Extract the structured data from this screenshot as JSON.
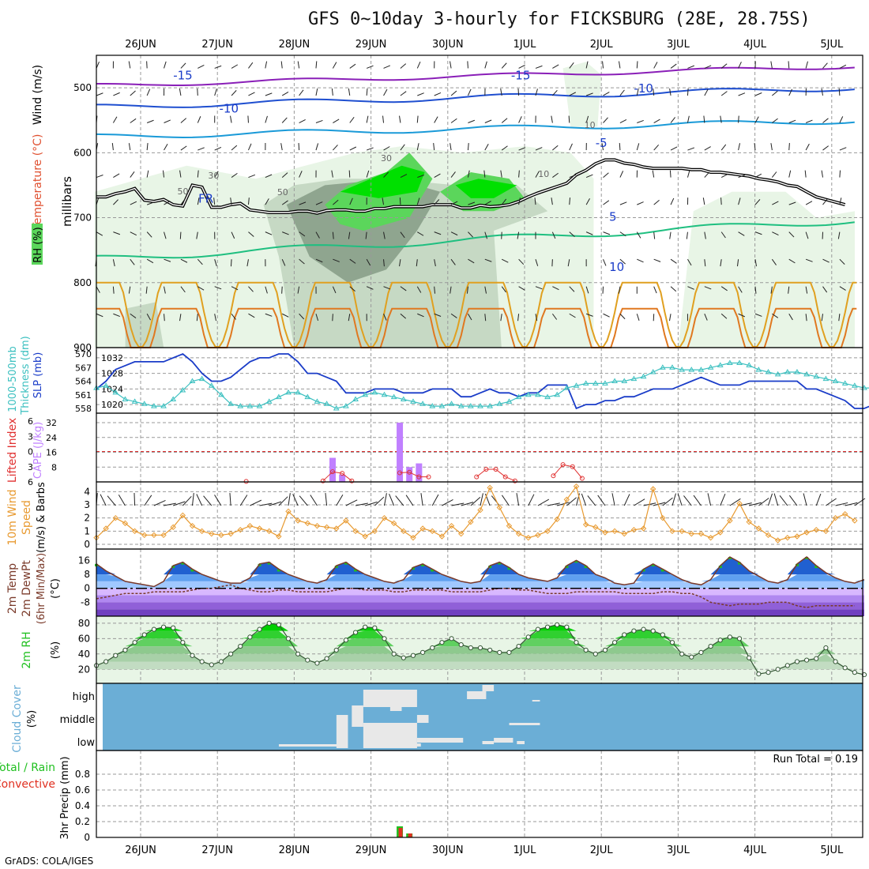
{
  "title": "GFS 0~10day 3-hourly for FICKSBURG (28E, 28.75S)",
  "credit": "GrADS: COLA/IGES",
  "colors": {
    "grid": "#999999",
    "rh_light": "#e8f5e6",
    "rh_mid": "#c6d9c4",
    "rh_dark": "#8fa58f",
    "rh_green": "#5bd65b",
    "rh_bright": "#00e000",
    "temp_purple": "#8a1fb8",
    "temp_blue": "#1f4fd0",
    "temp_cyan": "#1a9ad8",
    "temp_teal": "#1fbf80",
    "temp_orange": "#e0a020",
    "temp_darkorange": "#e07820",
    "temp_magenta": "#d00080",
    "slp": "#1a3cc8",
    "thickness": "#3cc0c0",
    "cape": "#c080ff",
    "li": "#e03030",
    "wind": "#e89a30",
    "cloud_bg": "#6baed6",
    "cloud_fill": "#e8e8e8",
    "precip_total": "#20c020",
    "precip_conv": "#e03020"
  },
  "chart_data": [
    {
      "type": "contour-timeheight",
      "panel": "upper-air",
      "title": "Temperature (°C) / Wind (m/s) / RH (%)",
      "ylabel": "millibars",
      "ylabel_parts": [
        "RH (%)",
        "Temperature (°C)",
        "Wind (m/s)"
      ],
      "yticks": [
        500,
        600,
        700,
        800,
        900
      ],
      "ylim": [
        900,
        450
      ],
      "temperature_labels": [
        {
          "text": "-15",
          "day": 0.55,
          "p": 487
        },
        {
          "text": "-15",
          "day": 4.95,
          "p": 487
        },
        {
          "text": "-10",
          "day": 1.15,
          "p": 538
        },
        {
          "text": "-10",
          "day": 6.55,
          "p": 507
        },
        {
          "text": "-5",
          "day": 6.0,
          "p": 591
        },
        {
          "text": "5",
          "day": 6.15,
          "p": 705
        },
        {
          "text": "10",
          "day": 6.2,
          "p": 782
        },
        {
          "text": "FR",
          "day": 0.85,
          "p": 677
        }
      ],
      "rh_labels": [
        {
          "text": "30",
          "day": 0.95,
          "p": 640
        },
        {
          "text": "30",
          "day": 3.2,
          "p": 613
        },
        {
          "text": "50",
          "day": 1.85,
          "p": 665
        },
        {
          "text": "50",
          "day": 0.55,
          "p": 664
        },
        {
          "text": "10",
          "day": 5.85,
          "p": 562
        },
        {
          "text": "10",
          "day": 5.25,
          "p": 637
        }
      ],
      "freezing_level_p": [
        668,
        668,
        663,
        660,
        655,
        673,
        675,
        672,
        680,
        682,
        650,
        653,
        684,
        684,
        680,
        678,
        688,
        690,
        692,
        692,
        692,
        690,
        690,
        693,
        689,
        688,
        688,
        690,
        690,
        686,
        686,
        683,
        683,
        683,
        683,
        680,
        680,
        680,
        685,
        685,
        681,
        683,
        682,
        680,
        675,
        668,
        662,
        657,
        652,
        647,
        634,
        627,
        617,
        611,
        611,
        616,
        618,
        622,
        624,
        624,
        624,
        624,
        626,
        626,
        630,
        630,
        632,
        634,
        636,
        640,
        642,
        645,
        650,
        652,
        660,
        668,
        672,
        676,
        680
      ]
    },
    {
      "type": "line",
      "panel": "thickness-slp",
      "title": "1000-500mb Thickness (dm) / SLP (mb)",
      "ylabel_left": "1000-500mb Thickness (dm)",
      "ylabel_right": "SLP (mb)",
      "yticks_left": [
        558,
        561,
        564,
        567,
        570
      ],
      "yticks_right": [
        1020,
        1024,
        1028,
        1032
      ],
      "series": [
        {
          "name": "SLP (mb)",
          "values": [
            1024,
            1026,
            1029,
            1030,
            1031,
            1031,
            1031,
            1031,
            1032,
            1033,
            1031,
            1028,
            1026,
            1026,
            1027,
            1029,
            1031,
            1032,
            1032,
            1033,
            1033,
            1031,
            1028,
            1028,
            1027,
            1026,
            1023,
            1023,
            1023,
            1024,
            1024,
            1024,
            1023,
            1023,
            1023,
            1024,
            1024,
            1024,
            1022,
            1022,
            1023,
            1024,
            1023,
            1023,
            1022,
            1023,
            1023,
            1025,
            1025,
            1025,
            1019,
            1020,
            1020,
            1021,
            1021,
            1022,
            1022,
            1023,
            1024,
            1024,
            1024,
            1025,
            1026,
            1027,
            1026,
            1025,
            1025,
            1025,
            1026,
            1026,
            1026,
            1026,
            1026,
            1026,
            1024,
            1024,
            1023,
            1022,
            1021,
            1019,
            1019,
            1020,
            1020
          ]
        },
        {
          "name": "1000-500mb Thickness (dm)",
          "values": [
            562.5,
            563,
            561.5,
            560,
            559.5,
            559,
            558.5,
            558.5,
            560,
            562,
            564,
            564.5,
            563,
            561,
            559,
            558.5,
            558.5,
            558.5,
            559.5,
            560.5,
            561.5,
            561.5,
            560.5,
            559.5,
            559,
            558,
            558.5,
            560,
            561,
            561.5,
            561,
            560.5,
            560,
            559.5,
            559,
            558.5,
            558.5,
            559,
            558.5,
            558.5,
            558.5,
            558.5,
            559,
            559.5,
            560.5,
            561,
            561,
            560.5,
            561,
            562.5,
            563,
            563.5,
            563.5,
            563.5,
            564,
            564,
            564.5,
            565,
            566,
            567,
            567,
            566.5,
            566.5,
            566.5,
            567,
            567.5,
            568,
            568,
            567.5,
            566.5,
            566,
            565.5,
            566,
            566,
            565.5,
            565,
            564.5,
            564,
            563.5,
            563,
            562.5,
            562.5,
            562
          ]
        }
      ]
    },
    {
      "type": "bar",
      "panel": "cape-lifted-index",
      "title": "CAPE (J/kg) / Lifted Index",
      "ylabel_left": "Lifted Index",
      "ylabel_right": "CAPE (J/kg)",
      "yticks_left": [
        -6,
        -3,
        0,
        3,
        6
      ],
      "ytick_labels_left": [
        "6",
        "3",
        "0",
        "3",
        "6"
      ],
      "yticks_right": [
        8,
        16,
        24,
        32
      ],
      "ylim_cape": [
        0,
        32
      ],
      "cape": [
        {
          "day": 2.5,
          "value": 13
        },
        {
          "day": 2.625,
          "value": 4
        },
        {
          "day": 3.375,
          "value": 32
        },
        {
          "day": 3.5,
          "value": 8
        },
        {
          "day": 3.625,
          "value": 10
        }
      ],
      "lifted_index": [
        {
          "day": 1.375,
          "value": 5.9
        },
        {
          "day": 2.375,
          "value": 5.8
        },
        {
          "day": 2.5,
          "value": 4.0
        },
        {
          "day": 2.625,
          "value": 4.3
        },
        {
          "day": 2.75,
          "value": 5.8
        },
        {
          "day": 3.375,
          "value": 4.2
        },
        {
          "day": 3.5,
          "value": 4.1
        },
        {
          "day": 3.625,
          "value": 5.0
        },
        {
          "day": 3.75,
          "value": 5.0
        },
        {
          "day": 4.375,
          "value": 5.0
        },
        {
          "day": 4.5,
          "value": 3.5
        },
        {
          "day": 4.625,
          "value": 3.5
        },
        {
          "day": 4.75,
          "value": 5.0
        },
        {
          "day": 4.875,
          "value": 5.8
        },
        {
          "day": 5.375,
          "value": 4.8
        },
        {
          "day": 5.5,
          "value": 2.6
        },
        {
          "day": 5.625,
          "value": 3.0
        },
        {
          "day": 5.75,
          "value": 5.3
        }
      ],
      "threshold": 0
    },
    {
      "type": "line",
      "panel": "wind",
      "title": "10m Wind Speed (m/s) & Barbs",
      "ylabel": "10m Wind Speed (m/s) & Barbs",
      "yticks": [
        0,
        1,
        2,
        3,
        4
      ],
      "ylim": [
        0,
        4.5
      ],
      "series": [
        {
          "name": "10m Wind Speed (m/s)",
          "values": [
            0.5,
            1.2,
            2.0,
            1.6,
            1.0,
            0.7,
            0.7,
            0.7,
            1.3,
            2.2,
            1.4,
            1.0,
            0.8,
            0.7,
            0.8,
            1.1,
            1.4,
            1.2,
            1.0,
            0.6,
            2.5,
            1.8,
            1.6,
            1.4,
            1.3,
            1.2,
            1.8,
            1.0,
            0.6,
            1.0,
            2.0,
            1.6,
            1.0,
            0.5,
            1.2,
            1.0,
            0.6,
            1.4,
            0.8,
            1.7,
            2.6,
            4.3,
            2.8,
            1.4,
            0.8,
            0.5,
            0.7,
            1.0,
            1.9,
            3.4,
            4.4,
            1.5,
            1.3,
            0.9,
            1.0,
            0.8,
            1.1,
            1.2,
            4.2,
            2.0,
            1.0,
            1.0,
            0.8,
            0.8,
            0.5,
            0.9,
            1.8,
            3.1,
            1.7,
            1.2,
            0.7,
            0.3,
            0.5,
            0.6,
            0.9,
            1.1,
            1.0,
            2.0,
            2.3,
            1.8,
            1.8,
            1.8,
            2.0,
            2.4,
            3.2,
            3.0,
            2.6
          ]
        }
      ]
    },
    {
      "type": "area",
      "panel": "temperature",
      "title": "2m Temp / 2m DewPt (6hr Min/Max) (°C)",
      "ylabel": "2m Temp / 2m DewPt (6hr Min/Max)",
      "yticks": [
        -8,
        0,
        8,
        16
      ],
      "ylim": [
        -16,
        18
      ],
      "series": [
        {
          "name": "2m Temp (°C)",
          "values": [
            14,
            10,
            7,
            4,
            3,
            2,
            1,
            4,
            13,
            15,
            11,
            8,
            6,
            4,
            3,
            3,
            6,
            14,
            15,
            11,
            8,
            6,
            4,
            3,
            5,
            13,
            15,
            11,
            8,
            6,
            4,
            3,
            5,
            12,
            14,
            11,
            8,
            6,
            4,
            3,
            4,
            13,
            15,
            12,
            8,
            6,
            5,
            4,
            6,
            13,
            16,
            13,
            8,
            6,
            3,
            2,
            3,
            11,
            14,
            11,
            8,
            5,
            3,
            2,
            5,
            13,
            18,
            15,
            10,
            7,
            4,
            3,
            5,
            14,
            18,
            13,
            9,
            6,
            4,
            3,
            5,
            13,
            16,
            12,
            9,
            7,
            6,
            5
          ]
        },
        {
          "name": "2m DewPt (°C)",
          "values": [
            -6,
            -5,
            -4,
            -3,
            -3,
            -3,
            -2,
            -2,
            -2,
            -2,
            -1,
            0,
            0,
            1,
            2,
            0,
            -1,
            -2,
            -2,
            -1,
            -1,
            -2,
            -2,
            -2,
            -2,
            -1,
            0,
            0,
            -1,
            -1,
            -1,
            -2,
            -2,
            -1,
            -1,
            -1,
            -1,
            -2,
            -2,
            -2,
            -2,
            -1,
            0,
            0,
            -1,
            -1,
            -2,
            -3,
            -3,
            -3,
            -2,
            -2,
            -2,
            -2,
            -2,
            -3,
            -3,
            -3,
            -3,
            -2,
            -2,
            -3,
            -3,
            -5,
            -8,
            -9,
            -10,
            -9,
            -9,
            -9,
            -8,
            -8,
            -8,
            -10,
            -11,
            -10,
            -10,
            -10,
            -10,
            -10,
            -9,
            -10,
            -10,
            -10,
            -9,
            -9,
            -9
          ]
        }
      ]
    },
    {
      "type": "area",
      "panel": "rh",
      "title": "2m RH (%)",
      "ylabel": "2m RH (%)",
      "yticks": [
        20,
        40,
        60,
        80
      ],
      "ylim": [
        10,
        85
      ],
      "series": [
        {
          "name": "2m RH (%)",
          "values": [
            25,
            30,
            38,
            45,
            55,
            65,
            72,
            75,
            74,
            55,
            38,
            30,
            26,
            30,
            40,
            50,
            62,
            72,
            80,
            78,
            60,
            40,
            32,
            28,
            34,
            45,
            58,
            68,
            75,
            74,
            60,
            40,
            35,
            38,
            42,
            48,
            55,
            60,
            52,
            48,
            48,
            45,
            42,
            42,
            50,
            62,
            72,
            75,
            78,
            75,
            55,
            45,
            40,
            45,
            55,
            65,
            70,
            72,
            70,
            65,
            55,
            40,
            36,
            42,
            50,
            58,
            62,
            60,
            35,
            14,
            16,
            20,
            25,
            30,
            32,
            34,
            48,
            30,
            22,
            16,
            13,
            18,
            25,
            30,
            38,
            45,
            30,
            25,
            16,
            18,
            25,
            30,
            34,
            36,
            40,
            38
          ]
        }
      ]
    },
    {
      "type": "heatmap",
      "panel": "cloud-cover",
      "title": "Cloud Cover (%)",
      "ylabel": "Cloud Cover (%)",
      "levels": [
        "high",
        "middle",
        "low"
      ],
      "notes": "Light cells mark cloud coverage at low/middle/high levels"
    },
    {
      "type": "bar",
      "panel": "precipitation",
      "title": "3hr Precip (mm)",
      "ylabel": "3hr Precip (mm)",
      "legend": [
        "Total / Rain",
        "Convective"
      ],
      "annotation": "Run Total = 0.19",
      "yticks": [
        0,
        0.2,
        0.4,
        0.6,
        0.8
      ],
      "ylim": [
        0,
        1.0
      ],
      "total": [
        {
          "day": 3.375,
          "value": 0.14
        },
        {
          "day": 3.5,
          "value": 0.05
        }
      ],
      "convective": [
        {
          "day": 3.375,
          "value": 0.12
        },
        {
          "day": 3.5,
          "value": 0.05
        }
      ]
    }
  ],
  "x_axis": {
    "day_labels": [
      "26JUN",
      "27JUN",
      "28JUN",
      "29JUN",
      "30JUN",
      "1JUL",
      "2JUL",
      "3JUL",
      "4JUL",
      "5JUL"
    ]
  },
  "labels": {
    "upper_wind": "Wind (m/s)",
    "upper_temp": "Temperature (°C)",
    "upper_rh": "RH (%)",
    "upper_mb": "millibars",
    "thick": "1000-500mb",
    "thick2": "Thickness (dm)",
    "slp": "SLP (mb)",
    "li": "Lifted Index",
    "cape": "CAPE (J/kg)",
    "wind10": "10m Wind",
    "wind_speed": "Speed",
    "wind_units": "(m/s) & Barbs",
    "t2m": "2m Temp",
    "td2m": "2m DewPt",
    "tminmax": "(6hr Min/Max)",
    "tunit": "(°C)",
    "rh2m": "2m RH",
    "rhunit": "(%)",
    "cloud": "Cloud Cover",
    "cloudunit": "(%)",
    "precip_total": "Total / Rain",
    "precip_conv": "Convective",
    "precip_axis": "3hr Precip (mm)"
  }
}
